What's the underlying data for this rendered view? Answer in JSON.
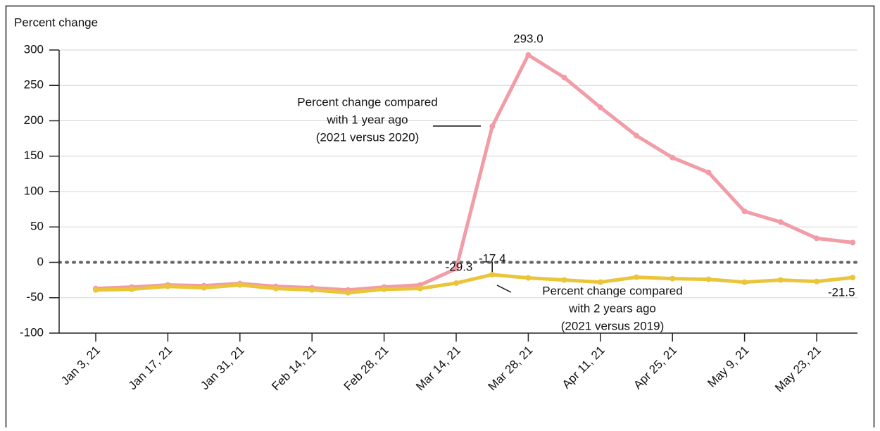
{
  "chart_data": {
    "type": "line",
    "y_label": "Percent change",
    "categories": [
      "Jan 3, 21",
      null,
      "Jan 17, 21",
      null,
      "Jan 31, 21",
      null,
      "Feb 14, 21",
      null,
      "Feb 28, 21",
      null,
      "Mar 14, 21",
      null,
      "Mar 28, 21",
      null,
      "Apr 11, 21",
      null,
      "Apr 25, 21",
      null,
      "May 9, 21",
      null,
      "May 23, 21",
      null
    ],
    "series": [
      {
        "name": "Percent change compared with 1 year ago (2021 versus 2020)",
        "color": "#f19ca6",
        "values": [
          -37,
          -35,
          -32,
          -33,
          -30,
          -34,
          -36,
          -39,
          -35,
          -32,
          -9,
          192,
          293,
          261,
          219,
          179,
          148,
          127,
          72,
          57,
          34,
          28
        ],
        "value_labels": [
          null,
          null,
          null,
          null,
          null,
          null,
          null,
          null,
          null,
          null,
          null,
          null,
          "293.0",
          null,
          null,
          null,
          null,
          null,
          null,
          null,
          null,
          null
        ]
      },
      {
        "name": "Percent change compared with 2 years ago (2021 versus 2019)",
        "color": "#eac53a",
        "values": [
          -39,
          -38,
          -34,
          -36,
          -32,
          -37,
          -39,
          -43,
          -38,
          -37,
          -29.3,
          -17.4,
          -22,
          -25,
          -28,
          -21,
          -23,
          -24,
          -28,
          -25,
          -27,
          -21.5
        ],
        "value_labels": [
          null,
          null,
          null,
          null,
          null,
          null,
          null,
          null,
          null,
          null,
          "-29.3",
          "-17.4",
          null,
          null,
          null,
          null,
          null,
          null,
          null,
          null,
          null,
          "-21.5"
        ]
      }
    ],
    "annotations": [
      {
        "lines": [
          "Percent change compared",
          "with 1 year ago",
          "(2021 versus 2020)"
        ]
      },
      {
        "lines": [
          "Percent change compared",
          "with 2 years ago",
          "(2021 versus 2019)"
        ]
      }
    ],
    "ylim": [
      -100,
      300
    ],
    "yticks": [
      -100,
      -50,
      0,
      50,
      100,
      150,
      200,
      250,
      300
    ],
    "grid": true
  }
}
